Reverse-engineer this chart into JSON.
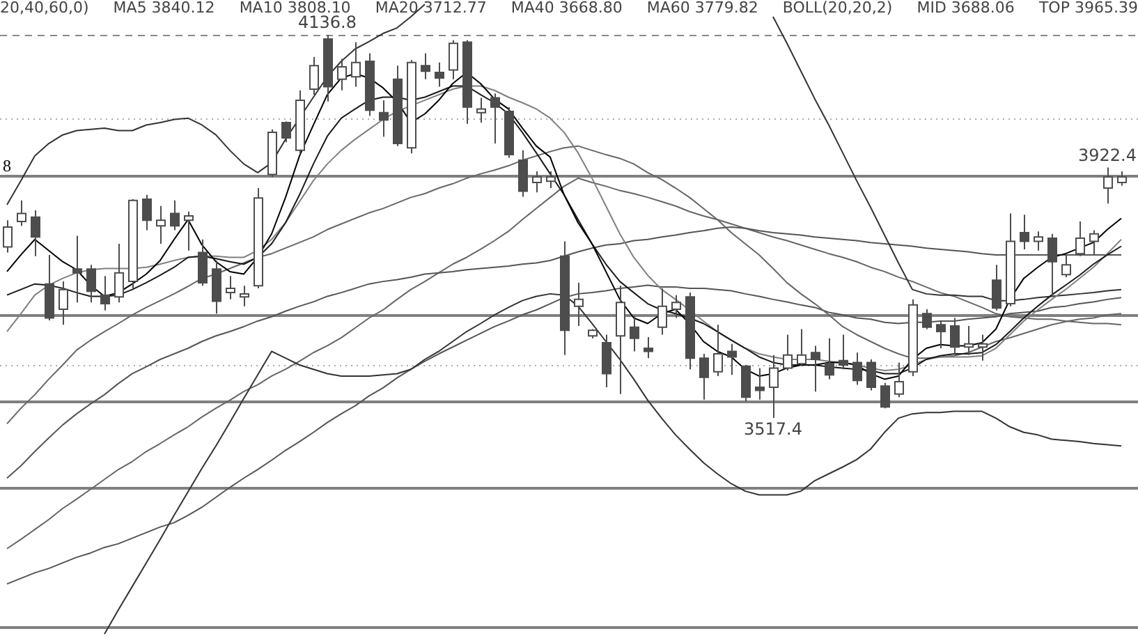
{
  "chart_data": {
    "type": "candlestick",
    "color": "#4d4d4d",
    "colors": [
      "#ffffff",
      "#ffffff",
      "#4d4d4d",
      "#4d4d4d",
      "#ffffff",
      "#4d4d4d",
      "#4d4d4d",
      "#4d4d4d",
      "#ffffff",
      "#ffffff",
      "#4d4d4d",
      "#ffffff",
      "#4d4d4d",
      "#ffffff",
      "#4d4d4d",
      "#4d4d4d",
      "#ffffff",
      "#ffffff",
      "#ffffff",
      "#ffffff",
      "#4d4d4d",
      "#ffffff",
      "#ffffff",
      "#4d4d4d",
      "#ffffff",
      "#ffffff",
      "#4d4d4d",
      "#4d4d4d",
      "#4d4d4d",
      "#ffffff",
      "#4d4d4d",
      "#4d4d4d",
      "#ffffff",
      "#4d4d4d",
      "#ffffff",
      "#4d4d4d",
      "#4d4d4d",
      "#4d4d4d",
      "#ffffff",
      "#ffffff",
      "#4d4d4d",
      "#ffffff",
      "#ffffff",
      "#4d4d4d",
      "#ffffff",
      "#4d4d4d",
      "#4d4d4d",
      "#ffffff",
      "#ffffff",
      "#4d4d4d",
      "#4d4d4d",
      "#ffffff",
      "#4d4d4d",
      "#4d4d4d",
      "#4d4d4d",
      "#ffffff",
      "#ffffff",
      "#ffffff",
      "#4d4d4d",
      "#4d4d4d",
      "#4d4d4d",
      "#4d4d4d",
      "#4d4d4d",
      "#4d4d4d",
      "#ffffff",
      "#ffffff",
      "#4d4d4d",
      "#4d4d4d",
      "#4d4d4d",
      "#ffffff",
      "#ffffff",
      "#4d4d4d",
      "#ffffff",
      "#4d4d4d",
      "#ffffff",
      "#4d4d4d",
      "#ffffff",
      "#ffffff",
      "#ffffff",
      "#ffffff",
      "#ffffff"
    ],
    "categories": [
      null,
      null,
      null,
      null,
      null,
      null,
      null,
      null,
      null,
      null,
      null,
      null,
      null,
      null,
      null,
      null,
      null,
      null,
      null,
      null,
      null,
      null,
      null,
      null,
      null,
      null,
      null,
      null,
      null,
      null,
      null,
      null,
      null,
      null,
      null,
      null,
      null,
      null,
      null,
      null,
      null,
      null,
      null,
      null,
      null,
      null,
      null,
      null,
      null,
      null,
      null,
      null,
      null,
      null,
      null,
      null,
      null,
      null,
      null,
      null,
      null,
      null,
      null,
      null,
      null,
      null,
      null,
      null,
      null,
      null,
      null,
      null,
      null,
      null,
      null,
      null,
      null,
      null,
      null,
      null,
      null
    ],
    "ohlc": [
      [
        3794,
        3837,
        3785,
        3826
      ],
      [
        3835,
        3869,
        3828,
        3848
      ],
      [
        3842,
        3853,
        3779,
        3810
      ],
      [
        3734,
        3781,
        3675,
        3679
      ],
      [
        3693,
        3738,
        3668,
        3725
      ],
      [
        3758,
        3812,
        3704,
        3752
      ],
      [
        3758,
        3765,
        3704,
        3722
      ],
      [
        3716,
        3747,
        3691,
        3702
      ],
      [
        3713,
        3799,
        3704,
        3752
      ],
      [
        3738,
        3871,
        3727,
        3869
      ],
      [
        3871,
        3878,
        3821,
        3837
      ],
      [
        3828,
        3860,
        3799,
        3837
      ],
      [
        3848,
        3869,
        3821,
        3828
      ],
      [
        3837,
        3851,
        3788,
        3844
      ],
      [
        3785,
        3806,
        3731,
        3736
      ],
      [
        3758,
        3772,
        3686,
        3706
      ],
      [
        3720,
        3747,
        3709,
        3727
      ],
      [
        3713,
        3731,
        3698,
        3718
      ],
      [
        3731,
        3889,
        3727,
        3873
      ],
      [
        3911,
        3984,
        3907,
        3979
      ],
      [
        3995,
        3997,
        3963,
        3970
      ],
      [
        3950,
        4047,
        3945,
        4031
      ],
      [
        4049,
        4101,
        4040,
        4087
      ],
      [
        4130,
        4136.8,
        4029,
        4053
      ],
      [
        4065,
        4098,
        4047,
        4085
      ],
      [
        4069,
        4125,
        4053,
        4092
      ],
      [
        4094,
        4107,
        4006,
        4015
      ],
      [
        4011,
        4031,
        3972,
        3999
      ],
      [
        4065,
        4087,
        3957,
        3961
      ],
      [
        3954,
        4096,
        3945,
        4092
      ],
      [
        4087,
        4107,
        4065,
        4078
      ],
      [
        4076,
        4092,
        4053,
        4067
      ],
      [
        4080,
        4128,
        4065,
        4123
      ],
      [
        4125,
        4128,
        3993,
        4020
      ],
      [
        4011,
        4035,
        3995,
        4017
      ],
      [
        4035,
        4042,
        3961,
        4020
      ],
      [
        4013,
        4020,
        3938,
        3943
      ],
      [
        3934,
        3950,
        3875,
        3884
      ],
      [
        3898,
        3916,
        3882,
        3907
      ],
      [
        3900,
        3916,
        3889,
        3907
      ],
      [
        3779,
        3803,
        3619,
        3659
      ],
      [
        3698,
        3736,
        3666,
        3709
      ],
      [
        3650,
        3661,
        3646,
        3659
      ],
      [
        3639,
        3652,
        3567,
        3589
      ],
      [
        3650,
        3731,
        3556,
        3704
      ],
      [
        3664,
        3682,
        3625,
        3646
      ],
      [
        3630,
        3648,
        3614,
        3625
      ],
      [
        3664,
        3727,
        3652,
        3698
      ],
      [
        3693,
        3716,
        3679,
        3704
      ],
      [
        3713,
        3720,
        3596,
        3614
      ],
      [
        3614,
        3621,
        3547,
        3583
      ],
      [
        3592,
        3668,
        3585,
        3621
      ],
      [
        3625,
        3637,
        3587,
        3616
      ],
      [
        3601,
        3603,
        3544,
        3551
      ],
      [
        3567,
        3598,
        3547,
        3562
      ],
      [
        3567,
        3619,
        3517.4,
        3598
      ],
      [
        3598,
        3652,
        3594,
        3619
      ],
      [
        3605,
        3661,
        3601,
        3619
      ],
      [
        3623,
        3634,
        3560,
        3612
      ],
      [
        3605,
        3646,
        3580,
        3587
      ],
      [
        3610,
        3652,
        3596,
        3603
      ],
      [
        3607,
        3623,
        3571,
        3578
      ],
      [
        3607,
        3612,
        3562,
        3567
      ],
      [
        3569,
        3574,
        3533,
        3535
      ],
      [
        3556,
        3607,
        3551,
        3576
      ],
      [
        3592,
        3709,
        3585,
        3700
      ],
      [
        3686,
        3693,
        3661,
        3664
      ],
      [
        3668,
        3675,
        3630,
        3657
      ],
      [
        3666,
        3679,
        3619,
        3632
      ],
      [
        3632,
        3666,
        3619,
        3637
      ],
      [
        3632,
        3652,
        3610,
        3637
      ],
      [
        3740,
        3765,
        3691,
        3695
      ],
      [
        3702,
        3848,
        3698,
        3803
      ],
      [
        3817,
        3846,
        3790,
        3803
      ],
      [
        3803,
        3819,
        3788,
        3810
      ],
      [
        3808,
        3815,
        3713,
        3770
      ],
      [
        3749,
        3781,
        3745,
        3765
      ],
      [
        3783,
        3835,
        3779,
        3808
      ],
      [
        3803,
        3821,
        3781,
        3815
      ],
      [
        3889,
        3922.4,
        3864,
        3907
      ],
      [
        3898,
        3916,
        3893,
        3907
      ]
    ],
    "series": [
      {
        "type": "line",
        "color": "#000000",
        "values": [
          3754,
          3781,
          3806,
          3788,
          3770,
          3757,
          3732,
          3714,
          3720,
          3734,
          3750,
          3772,
          3806,
          3838,
          3797,
          3770,
          3754,
          3750,
          3777,
          3815,
          3874,
          3941,
          3991,
          4040,
          4067,
          4074,
          4067,
          4051,
          4029,
          3995,
          4009,
          4031,
          4058,
          4076,
          4058,
          4033,
          4017,
          3986,
          3957,
          3939,
          3878,
          3833,
          3799,
          3754,
          3709,
          3679,
          3670,
          3686,
          3693,
          3670,
          3641,
          3625,
          3616,
          3596,
          3585,
          3589,
          3598,
          3603,
          3603,
          3607,
          3607,
          3603,
          3589,
          3580,
          3585,
          3612,
          3630,
          3636,
          3634,
          3634,
          3639,
          3661,
          3709,
          3743,
          3761,
          3777,
          3783,
          3792,
          3801,
          3822,
          3840
        ]
      },
      {
        "type": "line",
        "color": "#1a1a1a",
        "values": [
          3716,
          3725,
          3734,
          3732,
          3727,
          3720,
          3714,
          3714,
          3716,
          3725,
          3736,
          3748,
          3761,
          3777,
          3779,
          3775,
          3770,
          3766,
          3777,
          3799,
          3833,
          3878,
          3928,
          3973,
          4002,
          4017,
          4031,
          4036,
          4036,
          4031,
          4036,
          4045,
          4054,
          4054,
          4040,
          4027,
          4009,
          3979,
          3946,
          3912,
          3878,
          3838,
          3799,
          3766,
          3738,
          3720,
          3702,
          3692,
          3686,
          3679,
          3670,
          3657,
          3643,
          3630,
          3616,
          3607,
          3603,
          3603,
          3603,
          3600,
          3598,
          3596,
          3594,
          3589,
          3589,
          3598,
          3612,
          3618,
          3621,
          3621,
          3623,
          3636,
          3657,
          3679,
          3698,
          3716,
          3732,
          3748,
          3766,
          3781,
          3795
        ]
      },
      {
        "type": "line",
        "color": "#808080",
        "values": [
          3657,
          3686,
          3716,
          3732,
          3743,
          3752,
          3757,
          3759,
          3759,
          3759,
          3761,
          3766,
          3772,
          3777,
          3779,
          3779,
          3777,
          3777,
          3788,
          3806,
          3833,
          3867,
          3901,
          3928,
          3950,
          3968,
          3984,
          4000,
          4013,
          4022,
          4031,
          4040,
          4049,
          4054,
          4054,
          4047,
          4036,
          4027,
          4017,
          4002,
          3979,
          3946,
          3905,
          3860,
          3815,
          3777,
          3748,
          3725,
          3709,
          3692,
          3674,
          3657,
          3643,
          3630,
          3621,
          3616,
          3612,
          3612,
          3612,
          3609,
          3607,
          3603,
          3598,
          3594,
          3596,
          3603,
          3612,
          3616,
          3616,
          3616,
          3618,
          3630,
          3652,
          3674,
          3692,
          3709,
          3725,
          3743,
          3761,
          3783,
          3806
        ]
      },
      {
        "type": "line",
        "color": "#333333",
        "values": [
          3862,
          3901,
          3941,
          3961,
          3975,
          3982,
          3984,
          3986,
          3982,
          3982,
          3991,
          3995,
          4000,
          4002,
          3991,
          3975,
          3950,
          3928,
          3914,
          3930,
          3968,
          4002,
          4036,
          4069,
          4094,
          4114,
          4126,
          4139,
          4148,
          4166,
          4186,
          null,
          null,
          null,
          null,
          null,
          null,
          null,
          null,
          null,
          null,
          null,
          null,
          null,
          null,
          null,
          null,
          null,
          null,
          null,
          null,
          null,
          null,
          null,
          null,
          4166,
          4123,
          4078,
          4033,
          3991,
          3946,
          3901,
          3858,
          3813,
          3768,
          3725,
          3718,
          3716,
          3716,
          3714,
          3714,
          3707,
          3707,
          3709,
          3712,
          3714,
          3716,
          3718,
          3720,
          3723,
          3725
        ]
      },
      {
        "type": "line",
        "color": "#333333",
        "values": [
          null,
          null,
          null,
          null,
          null,
          null,
          null,
          3168,
          3207,
          3245,
          3283,
          3321,
          3360,
          3398,
          3436,
          3472,
          3510,
          3549,
          3587,
          3625,
          3614,
          3603,
          3596,
          3589,
          3585,
          3585,
          3585,
          3587,
          3589,
          3596,
          3612,
          3625,
          3641,
          3657,
          3670,
          3684,
          3696,
          3707,
          3714,
          3718,
          3716,
          3698,
          3670,
          3641,
          3612,
          3580,
          3546,
          3517,
          3490,
          3467,
          3445,
          3427,
          3411,
          3399,
          3393,
          3393,
          3393,
          3399,
          3416,
          3427,
          3438,
          3450,
          3467,
          3494,
          3517,
          3524,
          3526,
          3526,
          3528,
          3528,
          3528,
          3517,
          3503,
          3494,
          3490,
          3483,
          3481,
          3479,
          3476,
          3474,
          3472
        ]
      },
      {
        "type": "line",
        "color": "#666666",
        "values": [
          3508,
          3533,
          3555,
          3580,
          3603,
          3627,
          3643,
          3657,
          3670,
          3684,
          3696,
          3707,
          3718,
          3730,
          3743,
          3750,
          3759,
          3768,
          3777,
          3783,
          3792,
          3801,
          3810,
          3822,
          3831,
          3840,
          3849,
          3856,
          3865,
          3874,
          3880,
          3889,
          3896,
          3905,
          3912,
          3918,
          3925,
          3934,
          3941,
          3948,
          3954,
          3957,
          3950,
          3943,
          3937,
          3928,
          3914,
          3903,
          3889,
          3874,
          3856,
          3838,
          3817,
          3799,
          3781,
          3759,
          3736,
          3718,
          3702,
          3684,
          3665,
          3652,
          3641,
          3630,
          3621,
          3614,
          3614,
          3616,
          3618,
          3623,
          3632,
          3641,
          3647,
          3654,
          3661,
          3668,
          3673,
          3677,
          3679,
          3684,
          3686
        ]
      },
      {
        "type": "line",
        "color": "#555555",
        "values": [
          3420,
          3440,
          3463,
          3485,
          3506,
          3524,
          3540,
          3555,
          3573,
          3589,
          3600,
          3612,
          3621,
          3630,
          3641,
          3650,
          3657,
          3665,
          3674,
          3681,
          3690,
          3698,
          3705,
          3714,
          3720,
          3727,
          3734,
          3738,
          3741,
          3745,
          3750,
          3752,
          3754,
          3757,
          3759,
          3761,
          3763,
          3766,
          3768,
          3772,
          3779,
          3786,
          3792,
          3797,
          3799,
          3804,
          3806,
          3810,
          3813,
          3817,
          3820,
          3824,
          3826,
          3824,
          3820,
          3817,
          3815,
          3813,
          3810,
          3808,
          3806,
          3804,
          3801,
          3799,
          3797,
          3795,
          3792,
          3790,
          3788,
          3786,
          3783,
          3781,
          3781,
          3781,
          3781,
          3781,
          3781,
          3781,
          3781,
          3781,
          3781
        ]
      },
      {
        "type": "line",
        "color": "#666666",
        "values": [
          3306,
          3321,
          3337,
          3353,
          3371,
          3386,
          3402,
          3418,
          3434,
          3447,
          3463,
          3476,
          3490,
          3503,
          3519,
          3533,
          3546,
          3560,
          3571,
          3585,
          3596,
          3609,
          3623,
          3634,
          3647,
          3663,
          3679,
          3692,
          3709,
          3725,
          3738,
          3752,
          3766,
          3777,
          3790,
          3804,
          3819,
          3838,
          3856,
          3874,
          3892,
          3905,
          3898,
          3892,
          3885,
          3880,
          3874,
          3867,
          3860,
          3851,
          3844,
          3838,
          3831,
          3824,
          3817,
          3810,
          3804,
          3797,
          3790,
          3783,
          3777,
          3770,
          3761,
          3754,
          3745,
          3738,
          3729,
          3720,
          3714,
          3705,
          3696,
          3686,
          3681,
          3679,
          3677,
          3677,
          3674,
          3672,
          3670,
          3670,
          3668
        ]
      },
      {
        "type": "line",
        "color": "#555555",
        "values": [
          3249,
          3258,
          3267,
          3274,
          3283,
          3292,
          3299,
          3308,
          3314,
          3323,
          3332,
          3341,
          3348,
          3360,
          3373,
          3389,
          3405,
          3420,
          3434,
          3449,
          3465,
          3479,
          3494,
          3510,
          3524,
          3537,
          3553,
          3566,
          3582,
          3596,
          3609,
          3621,
          3632,
          3643,
          3654,
          3665,
          3674,
          3684,
          3692,
          3702,
          3712,
          3718,
          3720,
          3723,
          3727,
          3729,
          3732,
          3729,
          3729,
          3727,
          3727,
          3725,
          3723,
          3718,
          3714,
          3709,
          3705,
          3700,
          3696,
          3688,
          3684,
          3679,
          3677,
          3672,
          3670,
          3672,
          3672,
          3674,
          3674,
          3677,
          3679,
          3681,
          3686,
          3688,
          3690,
          3696,
          3698,
          3702,
          3705,
          3709,
          3712
        ]
      }
    ],
    "ref_lines": [
      {
        "axis": "y",
        "value": 4136.8,
        "color": "#888888",
        "line_style": "dashed"
      },
      {
        "axis": "y",
        "value": 4002,
        "color": "#aaaaaa",
        "line_style": "dotted"
      },
      {
        "axis": "y",
        "value": 3909,
        "color": "#808080",
        "line_style": "solid"
      },
      {
        "axis": "y",
        "value": 3684,
        "color": "#808080",
        "line_style": "solid"
      },
      {
        "axis": "y",
        "value": 3603,
        "color": "#aaaaaa",
        "line_style": "dotted"
      },
      {
        "axis": "y",
        "value": 3544,
        "color": "#808080",
        "line_style": "solid"
      },
      {
        "axis": "y",
        "value": 3405,
        "color": "#808080",
        "line_style": "solid"
      },
      {
        "axis": "y",
        "value": 3180,
        "color": "#808080",
        "line_style": "solid"
      }
    ],
    "annotations": [
      "20,40,60,0)",
      "MA5 3840.12",
      "MA10 3808.10",
      "MA20 3712.77",
      "MA40 3668.80",
      "MA60 3779.82",
      "BOLL(20,20,2)",
      "MID 3688.06",
      "TOP 3965.39",
      {
        "text": "4136.8",
        "y": 4136.8
      },
      {
        "text": "3517.4",
        "y": 3517.4
      },
      {
        "text": "3922.4",
        "y": 3922.4
      },
      "8"
    ],
    "tick_labels": false
  }
}
